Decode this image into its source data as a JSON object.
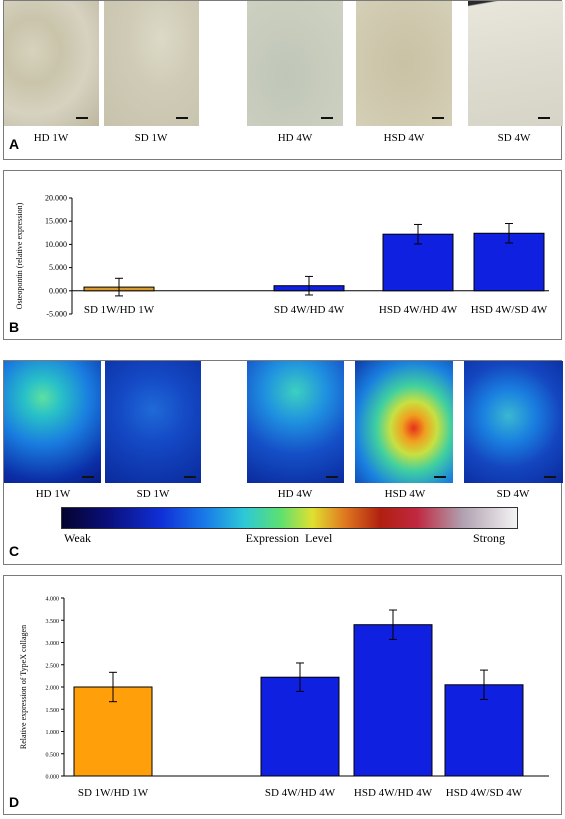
{
  "panel_a": {
    "label": "A",
    "captions": [
      "HD 1W",
      "SD 1W",
      "HD 4W",
      "HSD 4W",
      "SD 4W"
    ]
  },
  "panel_b": {
    "label": "B"
  },
  "panel_c": {
    "label": "C",
    "captions": [
      "HD 1W",
      "SD 1W",
      "HD 4W",
      "HSD 4W",
      "SD 4W"
    ],
    "scale_weak": "Weak",
    "scale_mid": "Expression  Level",
    "scale_strong": "Strong"
  },
  "panel_d": {
    "label": "D"
  },
  "chart_data": [
    {
      "type": "bar",
      "ylabel": "Osteopontin (relative expression)",
      "categories": [
        "SD 1W/HD 1W",
        "",
        "SD 4W/HD 4W",
        "HSD 4W/HD 4W",
        "HSD 4W/SD 4W"
      ],
      "values": [
        0.8,
        null,
        1.1,
        12.2,
        12.4
      ],
      "errors": [
        1.9,
        null,
        2.0,
        2.1,
        2.1
      ],
      "colors": [
        "#d99a2e",
        null,
        "#1020e0",
        "#1020e0",
        "#1020e0"
      ],
      "ylim": [
        -5,
        20
      ],
      "yticks": [
        "-5.000",
        "0.000",
        "5.000",
        "10.000",
        "15.000",
        "20.000"
      ],
      "ytick_values": [
        -5,
        0,
        5,
        10,
        15,
        20
      ]
    },
    {
      "type": "bar",
      "ylabel": "Relative expression of TypeX collagen",
      "categories": [
        "SD 1W/HD 1W",
        "",
        "SD 4W/HD 4W",
        "HSD 4W/HD 4W",
        "HSD 4W/SD 4W"
      ],
      "values": [
        2.0,
        null,
        2.22,
        3.4,
        2.05
      ],
      "errors": [
        0.33,
        null,
        0.32,
        0.33,
        0.33
      ],
      "colors": [
        "#ff9f0a",
        null,
        "#1020e0",
        "#1020e0",
        "#1020e0"
      ],
      "ylim": [
        0,
        4
      ],
      "yticks": [
        "0.000",
        "0.500",
        "1.000",
        "1.500",
        "2.000",
        "2.500",
        "3.000",
        "3.500",
        "4.000"
      ],
      "ytick_values": [
        0,
        0.5,
        1,
        1.5,
        2,
        2.5,
        3,
        3.5,
        4
      ]
    }
  ]
}
